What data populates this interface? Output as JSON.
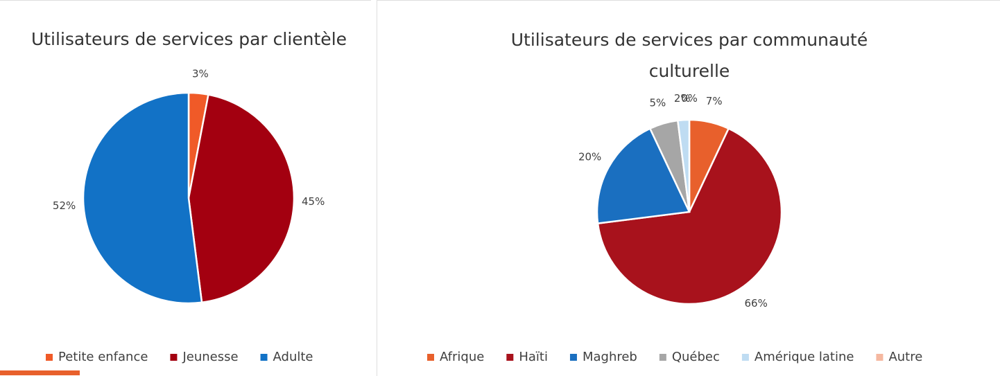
{
  "chart_data": [
    {
      "type": "pie",
      "title": "Utilisateurs de services par clientèle",
      "categories": [
        "Petite enfance",
        "Jeunesse",
        "Adulte"
      ],
      "values": [
        3,
        45,
        52
      ],
      "value_labels": [
        "3%",
        "45%",
        "52%"
      ],
      "colors": [
        "#f05a28",
        "#a30010",
        "#1272c6"
      ],
      "legend": "bottom"
    },
    {
      "type": "pie",
      "title": "Utilisateurs de services par communauté culturelle",
      "categories": [
        "Afrique",
        "Haïti",
        "Maghreb",
        "Québec",
        "Amérique latine",
        "Autre"
      ],
      "values": [
        7,
        66,
        20,
        5,
        2,
        0
      ],
      "value_labels": [
        "7%",
        "66%",
        "20%",
        "5%",
        "2%",
        "0%"
      ],
      "colors": [
        "#e8602c",
        "#a8121c",
        "#1a6fc0",
        "#a6a6a6",
        "#bfdcf2",
        "#f5b8a0"
      ],
      "legend": "bottom"
    }
  ]
}
